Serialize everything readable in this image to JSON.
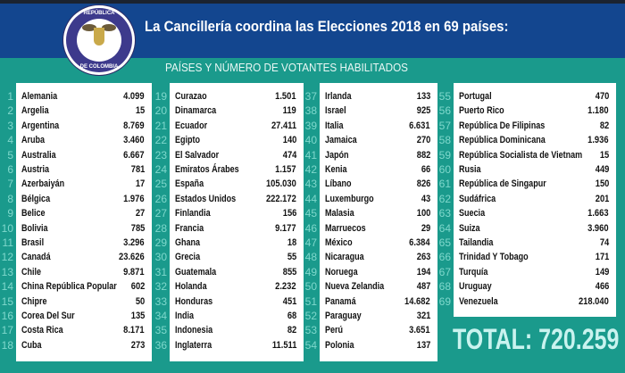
{
  "header": {
    "title": "La Cancillería coordina las Elecciones 2018 en 69 países:",
    "subtitle": "PAÍSES Y NÚMERO DE VOTANTES HABILITADOS",
    "logo_text_top": "REPÚBLICA",
    "logo_text_bottom": "DE COLOMBIA"
  },
  "colors": {
    "header_blue": "#13468f",
    "teal": "#1a9a8c",
    "number_teal": "#7fd8cc"
  },
  "columns": [
    [
      [
        "1",
        "Alemania",
        "4.099"
      ],
      [
        "2",
        "Argelia",
        "15"
      ],
      [
        "3",
        "Argentina",
        "8.769"
      ],
      [
        "4",
        "Aruba",
        "3.460"
      ],
      [
        "5",
        "Australia",
        "6.667"
      ],
      [
        "6",
        "Austria",
        "781"
      ],
      [
        "7",
        "Azerbaiyán",
        "17"
      ],
      [
        "8",
        "Bélgica",
        "1.976"
      ],
      [
        "9",
        "Belice",
        "27"
      ],
      [
        "10",
        "Bolivia",
        "785"
      ],
      [
        "11",
        "Brasil",
        "3.296"
      ],
      [
        "12",
        "Canadá",
        "23.626"
      ],
      [
        "13",
        "Chile",
        "9.871"
      ],
      [
        "14",
        "China República Popular",
        "602"
      ],
      [
        "15",
        "Chipre",
        "50"
      ],
      [
        "16",
        "Corea Del Sur",
        "135"
      ],
      [
        "17",
        "Costa Rica",
        "8.171"
      ],
      [
        "18",
        "Cuba",
        "273"
      ]
    ],
    [
      [
        "19",
        "Curazao",
        "1.501"
      ],
      [
        "20",
        "Dinamarca",
        "119"
      ],
      [
        "21",
        "Ecuador",
        "27.411"
      ],
      [
        "22",
        "Egipto",
        "140"
      ],
      [
        "23",
        "El Salvador",
        "474"
      ],
      [
        "24",
        "Emiratos  Árabes",
        "1.157"
      ],
      [
        "25",
        "España",
        "105.030"
      ],
      [
        "26",
        "Estados Unidos",
        "222.172"
      ],
      [
        "27",
        "Finlandia",
        "156"
      ],
      [
        "28",
        "Francia",
        "9.177"
      ],
      [
        "29",
        "Ghana",
        "18"
      ],
      [
        "30",
        "Grecia",
        "55"
      ],
      [
        "31",
        "Guatemala",
        "855"
      ],
      [
        "32",
        "Holanda",
        "2.232"
      ],
      [
        "33",
        "Honduras",
        "451"
      ],
      [
        "34",
        "India",
        "68"
      ],
      [
        "35",
        "Indonesia",
        "82"
      ],
      [
        "36",
        "Inglaterra",
        "11.511"
      ]
    ],
    [
      [
        "37",
        "Irlanda",
        "133"
      ],
      [
        "38",
        "Israel",
        "925"
      ],
      [
        "39",
        "Italia",
        "6.631"
      ],
      [
        "40",
        "Jamaica",
        "270"
      ],
      [
        "41",
        "Japón",
        "882"
      ],
      [
        "42",
        "Kenia",
        "66"
      ],
      [
        "43",
        "Líbano",
        "826"
      ],
      [
        "44",
        "Luxemburgo",
        "43"
      ],
      [
        "45",
        "Malasia",
        "100"
      ],
      [
        "46",
        "Marruecos",
        "29"
      ],
      [
        "47",
        "México",
        "6.384"
      ],
      [
        "48",
        "Nicaragua",
        "263"
      ],
      [
        "49",
        "Noruega",
        "194"
      ],
      [
        "50",
        "Nueva Zelandia",
        "487"
      ],
      [
        "51",
        "Panamá",
        "14.682"
      ],
      [
        "52",
        "Paraguay",
        "321"
      ],
      [
        "53",
        "Perú",
        "3.651"
      ],
      [
        "54",
        "Polonia",
        "137"
      ]
    ],
    [
      [
        "55",
        "Portugal",
        "470"
      ],
      [
        "56",
        "Puerto Rico",
        "1.180"
      ],
      [
        "57",
        "República De Filipinas",
        "82"
      ],
      [
        "58",
        "República Dominicana",
        "1.936"
      ],
      [
        "59",
        "República Socialista de Vietnam",
        "15"
      ],
      [
        "60",
        "Rusia",
        "449"
      ],
      [
        "61",
        "República de Singapur",
        "150"
      ],
      [
        "62",
        "Sudáfrica",
        "201"
      ],
      [
        "63",
        "Suecia",
        "1.663"
      ],
      [
        "64",
        "Suiza",
        "3.960"
      ],
      [
        "65",
        "Tailandia",
        "74"
      ],
      [
        "66",
        "Trinidad Y Tobago",
        "171"
      ],
      [
        "67",
        "Turquía",
        "149"
      ],
      [
        "68",
        "Uruguay",
        "466"
      ],
      [
        "69",
        "Venezuela",
        "218.040"
      ]
    ]
  ],
  "total": "TOTAL: 720.259"
}
